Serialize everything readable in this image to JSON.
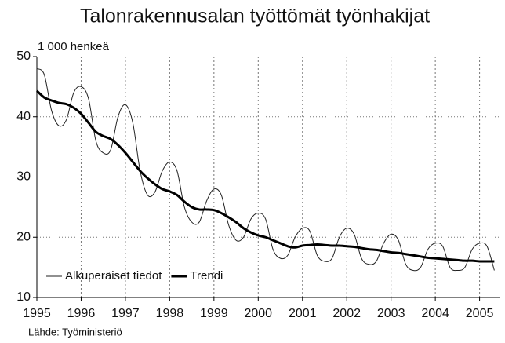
{
  "chart_data": {
    "type": "line",
    "title": "Talonrakennusalan työttömät työnhakijat",
    "y_label": "1 000 henkeä",
    "source": "Lähde: Työministeriö",
    "x": [
      1995,
      1995.167,
      1995.333,
      1995.5,
      1995.667,
      1995.833,
      1996,
      1996.167,
      1996.333,
      1996.5,
      1996.667,
      1996.833,
      1997,
      1997.167,
      1997.333,
      1997.5,
      1997.667,
      1997.833,
      1998,
      1998.167,
      1998.333,
      1998.5,
      1998.667,
      1998.833,
      1999,
      1999.167,
      1999.333,
      1999.5,
      1999.667,
      1999.833,
      2000,
      2000.167,
      2000.333,
      2000.5,
      2000.667,
      2000.833,
      2001,
      2001.167,
      2001.333,
      2001.5,
      2001.667,
      2001.833,
      2002,
      2002.167,
      2002.333,
      2002.5,
      2002.667,
      2002.833,
      2003,
      2003.167,
      2003.333,
      2003.5,
      2003.667,
      2003.833,
      2004,
      2004.167,
      2004.333,
      2004.5,
      2004.667,
      2004.833,
      2005,
      2005.167,
      2005.333
    ],
    "series": [
      {
        "name": "Alkuperäiset tiedot",
        "color": "#222222",
        "width": 1,
        "values": [
          48,
          47,
          41,
          38.5,
          39.5,
          44,
          45,
          43,
          36,
          34,
          34.5,
          40,
          42,
          39,
          31,
          27,
          27.5,
          31,
          32.5,
          31,
          25,
          22.5,
          22.5,
          26,
          28,
          27,
          22,
          19.5,
          20,
          23,
          24,
          23,
          18,
          16.5,
          17,
          20,
          21.5,
          21,
          17,
          16,
          16.5,
          20,
          21.5,
          20.5,
          16.5,
          15.5,
          16,
          19,
          20.5,
          19.5,
          15.5,
          14.5,
          15,
          18,
          19,
          18.5,
          15,
          14.5,
          15,
          18,
          19,
          18.5,
          14.5
        ]
      },
      {
        "name": "Trendi",
        "color": "#000000",
        "width": 3,
        "values": [
          44.3,
          43.2,
          42.7,
          42.3,
          42.1,
          41.5,
          40.5,
          39,
          37.5,
          36.8,
          36.3,
          35.3,
          34,
          32.5,
          31,
          29.8,
          28.8,
          28,
          27.6,
          27,
          25.9,
          25,
          24.6,
          24.6,
          24.5,
          24,
          23.3,
          22.5,
          21.5,
          20.8,
          20.3,
          20,
          19.5,
          19,
          18.5,
          18.3,
          18.6,
          18.7,
          18.8,
          18.7,
          18.6,
          18.6,
          18.5,
          18.4,
          18.2,
          18,
          17.9,
          17.7,
          17.5,
          17.4,
          17.2,
          17,
          16.8,
          16.6,
          16.5,
          16.4,
          16.3,
          16.2,
          16.1,
          16.1,
          16,
          16,
          16
        ]
      }
    ],
    "xlim": [
      1995,
      2005.45
    ],
    "xticks": [
      1995,
      1996,
      1997,
      1998,
      1999,
      2000,
      2001,
      2002,
      2003,
      2004,
      2005
    ],
    "ylim": [
      10,
      50
    ],
    "yticks": [
      10,
      20,
      30,
      40,
      50
    ],
    "grid": true,
    "legend": "lower left"
  }
}
